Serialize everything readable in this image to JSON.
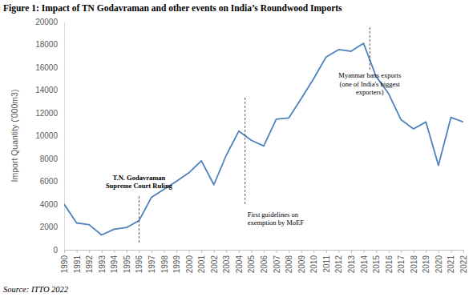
{
  "chart_data": {
    "type": "line",
    "title": "Figure 1: Impact of TN Godavraman and other events on India’s Roundwood Imports",
    "y_label": "Import Quantity ('000m3)",
    "source": "Source: ITTO 2022",
    "x": [
      1990,
      1991,
      1992,
      1993,
      1994,
      1995,
      1996,
      1997,
      1998,
      1999,
      2000,
      2001,
      2002,
      2003,
      2004,
      2005,
      2006,
      2007,
      2008,
      2009,
      2010,
      2011,
      2012,
      2013,
      2014,
      2015,
      2016,
      2017,
      2018,
      2019,
      2020,
      2021,
      2022
    ],
    "values": [
      4000,
      2350,
      2200,
      1300,
      1800,
      1950,
      2550,
      4600,
      5300,
      6000,
      6750,
      7800,
      5700,
      8300,
      10400,
      9600,
      9100,
      11450,
      11550,
      13250,
      15000,
      16900,
      17550,
      17400,
      18100,
      15200,
      13700,
      11400,
      10600,
      11200,
      7400,
      11600,
      11200
    ],
    "color": "#4f81bd",
    "xlim": [
      1990,
      2022
    ],
    "xticks": [
      1990,
      1991,
      1992,
      1993,
      1994,
      1995,
      1996,
      1997,
      1998,
      1999,
      2000,
      2001,
      2002,
      2003,
      2004,
      2005,
      2006,
      2007,
      2008,
      2009,
      2010,
      2011,
      2012,
      2013,
      2014,
      2015,
      2016,
      2017,
      2018,
      2019,
      2020,
      2021,
      2022
    ],
    "ylim": [
      0,
      20000
    ],
    "yticks": [
      0,
      2000,
      4000,
      6000,
      8000,
      10000,
      12000,
      14000,
      16000,
      18000,
      20000
    ],
    "grid": false,
    "annotations": [
      {
        "x": 1996,
        "text": [
          "T.N. Godavraman",
          "Supreme Court Ruling"
        ]
      },
      {
        "x": 2004.5,
        "text": [
          "First guidelines on",
          "exemption by MoEF"
        ]
      },
      {
        "x": 2014.5,
        "text": [
          "Myanmar bans exports",
          "(one of India's biggest",
          "exporters)"
        ]
      }
    ]
  }
}
